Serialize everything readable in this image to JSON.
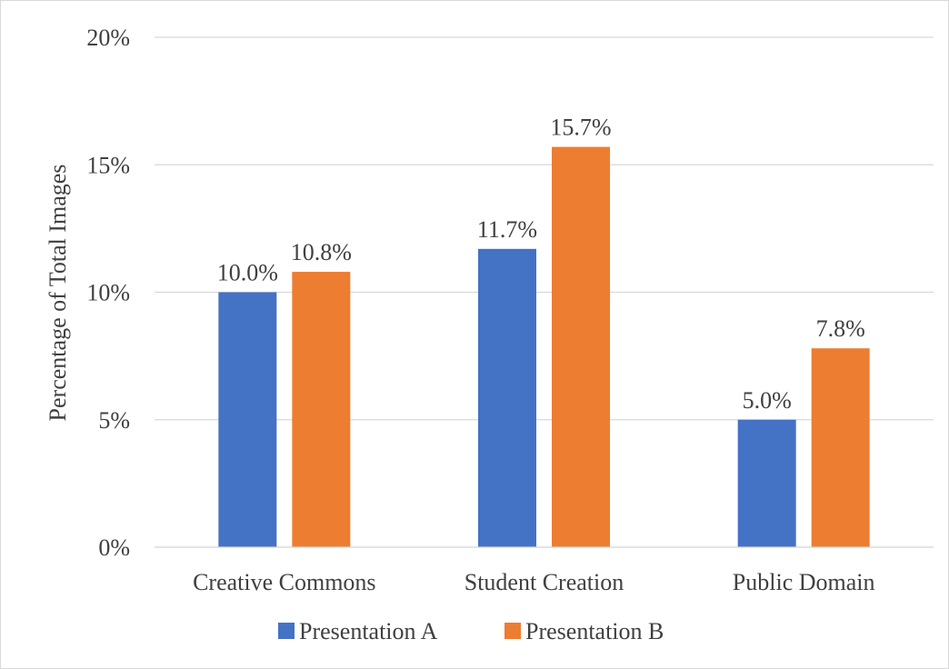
{
  "chart_data": {
    "type": "bar",
    "categories": [
      "Creative Commons",
      "Student Creation",
      "Public Domain"
    ],
    "series": [
      {
        "name": "Presentation A",
        "values": [
          10.0,
          11.7,
          5.0
        ],
        "labels": [
          "10.0%",
          "11.7%",
          "5.0%"
        ],
        "color": "#4472c4"
      },
      {
        "name": "Presentation B",
        "values": [
          10.8,
          15.7,
          7.8
        ],
        "labels": [
          "10.8%",
          "15.7%",
          "7.8%"
        ],
        "color": "#ed7d31"
      }
    ],
    "ylabel": "Percentage of Total Images",
    "ylim": [
      0,
      20
    ],
    "yticks": [
      0,
      5,
      10,
      15,
      20
    ],
    "ytick_labels": [
      "0%",
      "5%",
      "10%",
      "15%",
      "20%"
    ],
    "grid": true,
    "gridline_color": "#d9d9d9",
    "legend_position": "bottom"
  }
}
